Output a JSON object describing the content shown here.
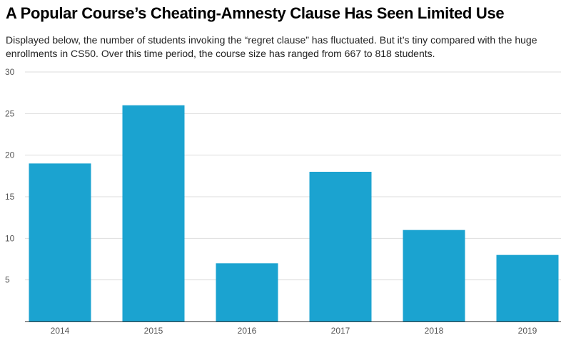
{
  "title": "A Popular Course’s Cheating-Amnesty Clause Has Seen Limited Use",
  "subtitle": "Displayed below, the number of students invoking the “regret clause” has fluctuated. But it’s tiny compared with the huge enrollments in CS50. Over this time period, the course size has ranged from 667 to 818 students.",
  "chart_data": {
    "type": "bar",
    "categories": [
      "2014",
      "2015",
      "2016",
      "2017",
      "2018",
      "2019"
    ],
    "values": [
      19,
      26,
      7,
      18,
      11,
      8
    ],
    "ylim": [
      0,
      30
    ],
    "yticks": [
      "5",
      "10",
      "15",
      "20",
      "25",
      "30"
    ],
    "grid": true,
    "bar_color": "#1ba3d0",
    "grid_color": "#dddddd",
    "axis_color": "#333333"
  }
}
